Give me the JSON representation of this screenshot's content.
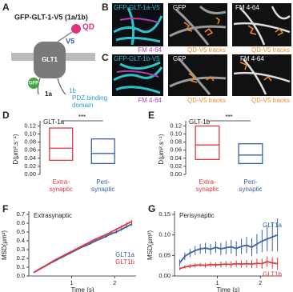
{
  "panel_labels": [
    "A",
    "B",
    "C",
    "D",
    "E",
    "F",
    "G"
  ],
  "schematic": {
    "title": "GFP-GLT-1-V5 (1a/1b)",
    "qd": "QD",
    "v5": "V5",
    "glt1": "GLT1",
    "gfp": "GFP",
    "isoform_1a": "1a",
    "isoform_1b": "1b",
    "pdz": [
      "PDZ binding",
      "domain"
    ]
  },
  "images": {
    "row_b": {
      "merge": "GFP-GLT-1a-V5",
      "merge_sub": "FM 4-64",
      "gfp": "GFP",
      "gfp_sub": "QD-V5 tracks",
      "fm": "FM 4-64",
      "fm_sub": "QD-V5 tracks"
    },
    "row_c": {
      "merge": "GFP-GLT-1b-V5",
      "merge_sub": "FM 4-64",
      "gfp": "GFP",
      "gfp_sub": "QD-V5 tracks",
      "fm": "FM 4-64",
      "fm_sub": "QD-V5 tracks"
    }
  },
  "chart_data": [
    {
      "type": "box",
      "title": "GLT-1a",
      "ylabel": "D(μm².s⁻¹)",
      "significance": "***",
      "categories": [
        [
          "Extra-",
          "synaptic"
        ],
        [
          "Peri-",
          "synaptic"
        ]
      ],
      "colors": [
        "#e0383e",
        "#3a5fa8"
      ],
      "q1": [
        0.035,
        0.027
      ],
      "median": [
        0.065,
        0.052
      ],
      "q3": [
        0.115,
        0.088
      ],
      "ylim": [
        0,
        0.125
      ],
      "yticks": [
        {
          "value": 0,
          "label": "0.00"
        },
        {
          "value": 0.02,
          "label": "0.02"
        },
        {
          "value": 0.04,
          "label": "0.04"
        },
        {
          "value": 0.06,
          "label": "0.06"
        },
        {
          "value": 0.08,
          "label": "0.08"
        },
        {
          "value": 0.1,
          "label": "0.10"
        },
        {
          "value": 0.12,
          "label": "0.12"
        }
      ]
    },
    {
      "type": "box",
      "title": "GLT-1b",
      "ylabel": "D(μm².s⁻¹)",
      "significance": "***",
      "categories": [
        [
          "Extra-",
          "synaptic"
        ],
        [
          "Peri-",
          "synaptic"
        ]
      ],
      "colors": [
        "#e0383e",
        "#3a5fa8"
      ],
      "q1": [
        0.037,
        0.027
      ],
      "median": [
        0.073,
        0.048
      ],
      "q3": [
        0.12,
        0.076
      ],
      "ylim": [
        0,
        0.125
      ],
      "yticks": [
        {
          "value": 0,
          "label": "0.00"
        },
        {
          "value": 0.02,
          "label": "0.02"
        },
        {
          "value": 0.04,
          "label": "0.04"
        },
        {
          "value": 0.06,
          "label": "0.06"
        },
        {
          "value": 0.08,
          "label": "0.08"
        },
        {
          "value": 0.1,
          "label": "0.10"
        },
        {
          "value": 0.12,
          "label": "0.12"
        }
      ]
    },
    {
      "type": "line",
      "title": "Extrasynaptic",
      "xlabel": "Time (s)",
      "ylabel": "MSD(μm²)",
      "legend": "lower right",
      "x": [
        0.12,
        0.24,
        0.36,
        0.48,
        0.6,
        0.72,
        0.84,
        0.96,
        1.08,
        1.2,
        1.32,
        1.44,
        1.56,
        1.68,
        1.8,
        1.92,
        2.04,
        2.16,
        2.28,
        2.4
      ],
      "series": [
        {
          "name": "GLT1a",
          "color": "#3a5fa8",
          "values": [
            0.04,
            0.075,
            0.105,
            0.14,
            0.17,
            0.2,
            0.23,
            0.26,
            0.29,
            0.32,
            0.345,
            0.37,
            0.4,
            0.425,
            0.45,
            0.48,
            0.5,
            0.53,
            0.56,
            0.59
          ],
          "errors": [
            0.004,
            0.005,
            0.006,
            0.006,
            0.007,
            0.008,
            0.008,
            0.009,
            0.01,
            0.01,
            0.011,
            0.012,
            0.012,
            0.013,
            0.014,
            0.015,
            0.016,
            0.017,
            0.018,
            0.02
          ]
        },
        {
          "name": "GLT1b",
          "color": "#e0383e",
          "values": [
            0.04,
            0.078,
            0.11,
            0.145,
            0.18,
            0.21,
            0.24,
            0.27,
            0.3,
            0.33,
            0.36,
            0.39,
            0.42,
            0.445,
            0.47,
            0.5,
            0.53,
            0.56,
            0.59,
            0.62
          ],
          "errors": [
            0.004,
            0.005,
            0.006,
            0.006,
            0.007,
            0.008,
            0.008,
            0.009,
            0.01,
            0.01,
            0.011,
            0.012,
            0.012,
            0.013,
            0.014,
            0.015,
            0.016,
            0.017,
            0.018,
            0.02
          ]
        }
      ],
      "xlim": [
        0,
        2.5
      ],
      "xticks": [
        1,
        2
      ],
      "ylim": [
        0,
        0.7
      ],
      "yticks": [
        {
          "value": 0,
          "label": "0.0"
        },
        {
          "value": 0.1,
          "label": "0.1"
        },
        {
          "value": 0.2,
          "label": "0.2"
        },
        {
          "value": 0.3,
          "label": "0.3"
        },
        {
          "value": 0.4,
          "label": "0.4"
        },
        {
          "value": 0.5,
          "label": "0.5"
        },
        {
          "value": 0.6,
          "label": "0.6"
        },
        {
          "value": 0.7,
          "label": "0.7"
        }
      ]
    },
    {
      "type": "line",
      "title": "Perisynaptic",
      "xlabel": "Time (s)",
      "ylabel": "MSD(μm²)",
      "legend": "line end",
      "x": [
        0.12,
        0.24,
        0.36,
        0.48,
        0.6,
        0.72,
        0.84,
        0.96,
        1.08,
        1.2,
        1.32,
        1.44,
        1.56,
        1.68,
        1.8,
        1.92,
        2.04,
        2.16,
        2.28,
        2.4
      ],
      "series": [
        {
          "name": "GLT1a",
          "color": "#3a5fa8",
          "values": [
            0.032,
            0.048,
            0.056,
            0.062,
            0.066,
            0.068,
            0.065,
            0.07,
            0.066,
            0.069,
            0.071,
            0.067,
            0.072,
            0.075,
            0.07,
            0.078,
            0.085,
            0.09,
            0.095,
            0.1
          ],
          "errors": [
            0.008,
            0.009,
            0.01,
            0.011,
            0.012,
            0.013,
            0.013,
            0.014,
            0.015,
            0.016,
            0.017,
            0.018,
            0.019,
            0.02,
            0.022,
            0.024,
            0.027,
            0.03,
            0.035,
            0.04
          ]
        },
        {
          "name": "GLT1b",
          "color": "#e0383e",
          "values": [
            0.018,
            0.022,
            0.024,
            0.026,
            0.027,
            0.026,
            0.028,
            0.027,
            0.028,
            0.029,
            0.028,
            0.03,
            0.029,
            0.03,
            0.029,
            0.031,
            0.03,
            0.035,
            0.032,
            0.03
          ],
          "errors": [
            0.004,
            0.004,
            0.005,
            0.005,
            0.005,
            0.006,
            0.006,
            0.006,
            0.007,
            0.007,
            0.008,
            0.008,
            0.009,
            0.009,
            0.01,
            0.011,
            0.012,
            0.013,
            0.014,
            0.015
          ]
        }
      ],
      "xlim": [
        0,
        2.5
      ],
      "xticks": [
        1,
        2
      ],
      "ylim": [
        0,
        0.15
      ],
      "yticks": [
        {
          "value": 0,
          "label": "0.00"
        },
        {
          "value": 0.05,
          "label": "0.05"
        },
        {
          "value": 0.1,
          "label": "0.10"
        },
        {
          "value": 0.15,
          "label": "0.15"
        }
      ]
    }
  ]
}
